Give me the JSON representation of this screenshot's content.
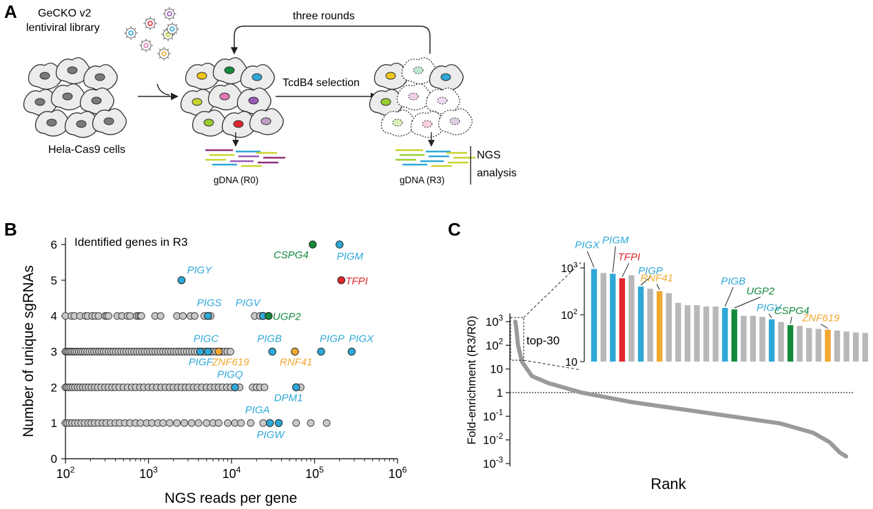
{
  "colors": {
    "blue": "#2fa8d8",
    "red": "#e0262b",
    "green": "#138a3b",
    "orange": "#f0a830",
    "gray": "#b8b8b8",
    "darkgray": "#9a9a9a"
  },
  "panelA": {
    "label": "A",
    "library": [
      "GeCKO v2",
      "lentiviral library"
    ],
    "cells": "Hela-Cas9 cells",
    "rounds": "three rounds",
    "selection": "TcdB4 selection",
    "gdna_r0": "gDNA (R0)",
    "gdna_r3": "gDNA (R3)",
    "ngs": [
      "NGS",
      "analysis"
    ]
  },
  "chart_data": [
    {
      "panel": "B",
      "type": "scatter",
      "title": "Identified genes in R3",
      "xlabel": "NGS reads per gene",
      "ylabel": "Number of unique sgRNAs",
      "xscale": "log",
      "xlim": [
        100,
        1000000
      ],
      "ylim": [
        0,
        6
      ],
      "xticks": [
        {
          "v": 100,
          "base": "10",
          "exp": "2"
        },
        {
          "v": 1000,
          "base": "10",
          "exp": "3"
        },
        {
          "v": 10000,
          "base": "10",
          "exp": "4"
        },
        {
          "v": 100000,
          "base": "10",
          "exp": "5"
        },
        {
          "v": 1000000,
          "base": "10",
          "exp": "6"
        }
      ],
      "yticks": [
        "0",
        "1",
        "2",
        "3",
        "4",
        "5",
        "6"
      ],
      "background": {
        "y1": [
          100,
          105,
          112,
          120,
          130,
          142,
          155,
          170,
          188,
          205,
          225,
          250,
          280,
          310,
          350,
          400,
          450,
          520,
          600,
          700,
          800,
          950,
          1100,
          1300,
          1500,
          1800,
          2200,
          2700,
          3300,
          4000,
          5000,
          6000,
          7000,
          9000,
          11000,
          13000,
          17000,
          24000,
          60000,
          90000,
          140000
        ],
        "y2": [
          100,
          104,
          109,
          115,
          122,
          130,
          140,
          150,
          162,
          175,
          190,
          206,
          225,
          245,
          270,
          300,
          330,
          365,
          400,
          445,
          500,
          560,
          630,
          700,
          790,
          880,
          1000,
          1120,
          1260,
          1420,
          1600,
          1800,
          2000,
          2250,
          2500,
          2800,
          3100,
          3500,
          3900,
          4400,
          5000,
          5600,
          6300,
          7000,
          7800,
          8800,
          9800,
          11000,
          12500,
          18000,
          20000,
          22000,
          25000,
          68000
        ],
        "y3": [
          100,
          104,
          108,
          113,
          118,
          124,
          130,
          137,
          145,
          153,
          162,
          172,
          183,
          195,
          208,
          222,
          237,
          253,
          270,
          288,
          308,
          330,
          353,
          378,
          405,
          435,
          468,
          503,
          541,
          582,
          626,
          673,
          724,
          779,
          838,
          901,
          969,
          1042,
          1120,
          1205,
          1296,
          1394,
          1500,
          1614,
          1736,
          1868,
          2009,
          2161,
          2325,
          2501,
          2691,
          2895,
          3114,
          3350,
          3604,
          3877,
          4171,
          4487,
          4827,
          5193,
          5587,
          6010,
          6466,
          7000,
          7500,
          8200,
          8900,
          9700
        ],
        "y4": [
          100,
          118,
          128,
          150,
          175,
          185,
          210,
          228,
          250,
          300,
          315,
          330,
          420,
          480,
          560,
          600,
          720,
          760,
          800,
          820,
          1200,
          1400,
          2200,
          2600,
          3200,
          3600,
          4700,
          5200,
          5600,
          19000,
          22000
        ],
        "y5": [],
        "y6": []
      },
      "genes": [
        {
          "name": "PIGY",
          "x": 2500,
          "y": 5,
          "color": "blue"
        },
        {
          "name": "CSPG4",
          "x": 95000,
          "y": 6,
          "color": "green"
        },
        {
          "name": "PIGM",
          "x": 200000,
          "y": 6,
          "color": "blue"
        },
        {
          "name": "TFPI",
          "x": 210000,
          "y": 5,
          "color": "red"
        },
        {
          "name": "PIGS",
          "x": 5200,
          "y": 4,
          "color": "blue"
        },
        {
          "name": "PIGV",
          "x": 24000,
          "y": 4,
          "color": "blue"
        },
        {
          "name": "UGP2",
          "x": 28000,
          "y": 4,
          "color": "green"
        },
        {
          "name": "PIGC",
          "x": 4200,
          "y": 3,
          "color": "blue"
        },
        {
          "name": "PIGF",
          "x": 5200,
          "y": 3,
          "color": "blue"
        },
        {
          "name": "ZNF619",
          "x": 7000,
          "y": 3,
          "color": "orange"
        },
        {
          "name": "PIGB",
          "x": 31000,
          "y": 3,
          "color": "blue"
        },
        {
          "name": "RNF41",
          "x": 58000,
          "y": 3,
          "color": "orange"
        },
        {
          "name": "PIGP",
          "x": 120000,
          "y": 3,
          "color": "blue"
        },
        {
          "name": "PIGX",
          "x": 280000,
          "y": 3,
          "color": "blue"
        },
        {
          "name": "PIGQ",
          "x": 11000,
          "y": 2,
          "color": "blue"
        },
        {
          "name": "DPM1",
          "x": 60000,
          "y": 2,
          "color": "blue"
        },
        {
          "name": "PIGA",
          "x": 29000,
          "y": 1,
          "color": "blue"
        },
        {
          "name": "PIGW",
          "x": 37000,
          "y": 1,
          "color": "blue"
        }
      ]
    },
    {
      "panel": "C",
      "type": "line",
      "xlabel": "Rank",
      "ylabel": "Fold-enrichment (R3/R0)",
      "yscale": "log",
      "ylim": [
        0.001,
        1000
      ],
      "yticks": [
        {
          "v": 1000,
          "base": "10",
          "exp": "3"
        },
        {
          "v": 100,
          "base": "10",
          "exp": "2"
        },
        {
          "v": 10,
          "base": "10",
          "exp": ""
        },
        {
          "v": 1,
          "base": "1",
          "exp": ""
        },
        {
          "v": 0.1,
          "base": "10",
          "exp": "-1"
        },
        {
          "v": 0.01,
          "base": "10",
          "exp": "-2"
        },
        {
          "v": 0.001,
          "base": "10",
          "exp": "-3"
        }
      ],
      "reference_line": 1,
      "curve": [
        [
          0,
          1000
        ],
        [
          0.003,
          500
        ],
        [
          0.008,
          100
        ],
        [
          0.02,
          20
        ],
        [
          0.05,
          5
        ],
        [
          0.1,
          2.5
        ],
        [
          0.2,
          1
        ],
        [
          0.35,
          0.4
        ],
        [
          0.5,
          0.2
        ],
        [
          0.65,
          0.1
        ],
        [
          0.8,
          0.05
        ],
        [
          0.9,
          0.02
        ],
        [
          0.95,
          0.008
        ],
        [
          0.98,
          0.003
        ],
        [
          1,
          0.002
        ]
      ],
      "inset": {
        "label": "top-30",
        "ylim": [
          10,
          1000
        ],
        "yticks": [
          {
            "v": 1000,
            "base": "10",
            "exp": "3"
          },
          {
            "v": 100,
            "base": "10",
            "exp": "2"
          },
          {
            "v": 10,
            "base": "10",
            "exp": ""
          }
        ],
        "bars": [
          {
            "value": 950,
            "color": "blue",
            "gene": "PIGX"
          },
          {
            "value": 780,
            "color": "gray",
            "gene": ""
          },
          {
            "value": 750,
            "color": "blue",
            "gene": "PIGM"
          },
          {
            "value": 600,
            "color": "red",
            "gene": "TFPI"
          },
          {
            "value": 700,
            "color": "gray",
            "gene": ""
          },
          {
            "value": 400,
            "color": "blue",
            "gene": "PIGP"
          },
          {
            "value": 360,
            "color": "gray",
            "gene": ""
          },
          {
            "value": 320,
            "color": "orange",
            "gene": "RNF41"
          },
          {
            "value": 290,
            "color": "gray",
            "gene": ""
          },
          {
            "value": 180,
            "color": "gray",
            "gene": ""
          },
          {
            "value": 160,
            "color": "gray",
            "gene": ""
          },
          {
            "value": 160,
            "color": "gray",
            "gene": ""
          },
          {
            "value": 150,
            "color": "gray",
            "gene": ""
          },
          {
            "value": 150,
            "color": "gray",
            "gene": ""
          },
          {
            "value": 140,
            "color": "blue",
            "gene": "PIGB"
          },
          {
            "value": 130,
            "color": "green",
            "gene": "UGP2"
          },
          {
            "value": 95,
            "color": "gray",
            "gene": ""
          },
          {
            "value": 95,
            "color": "gray",
            "gene": ""
          },
          {
            "value": 90,
            "color": "gray",
            "gene": ""
          },
          {
            "value": 80,
            "color": "blue",
            "gene": "PIGV"
          },
          {
            "value": 70,
            "color": "gray",
            "gene": ""
          },
          {
            "value": 60,
            "color": "green",
            "gene": "CSPG4"
          },
          {
            "value": 58,
            "color": "gray",
            "gene": ""
          },
          {
            "value": 52,
            "color": "gray",
            "gene": ""
          },
          {
            "value": 50,
            "color": "gray",
            "gene": ""
          },
          {
            "value": 48,
            "color": "orange",
            "gene": "ZNF619"
          },
          {
            "value": 46,
            "color": "gray",
            "gene": ""
          },
          {
            "value": 44,
            "color": "gray",
            "gene": ""
          },
          {
            "value": 42,
            "color": "gray",
            "gene": ""
          },
          {
            "value": 41,
            "color": "gray",
            "gene": ""
          }
        ]
      }
    }
  ]
}
